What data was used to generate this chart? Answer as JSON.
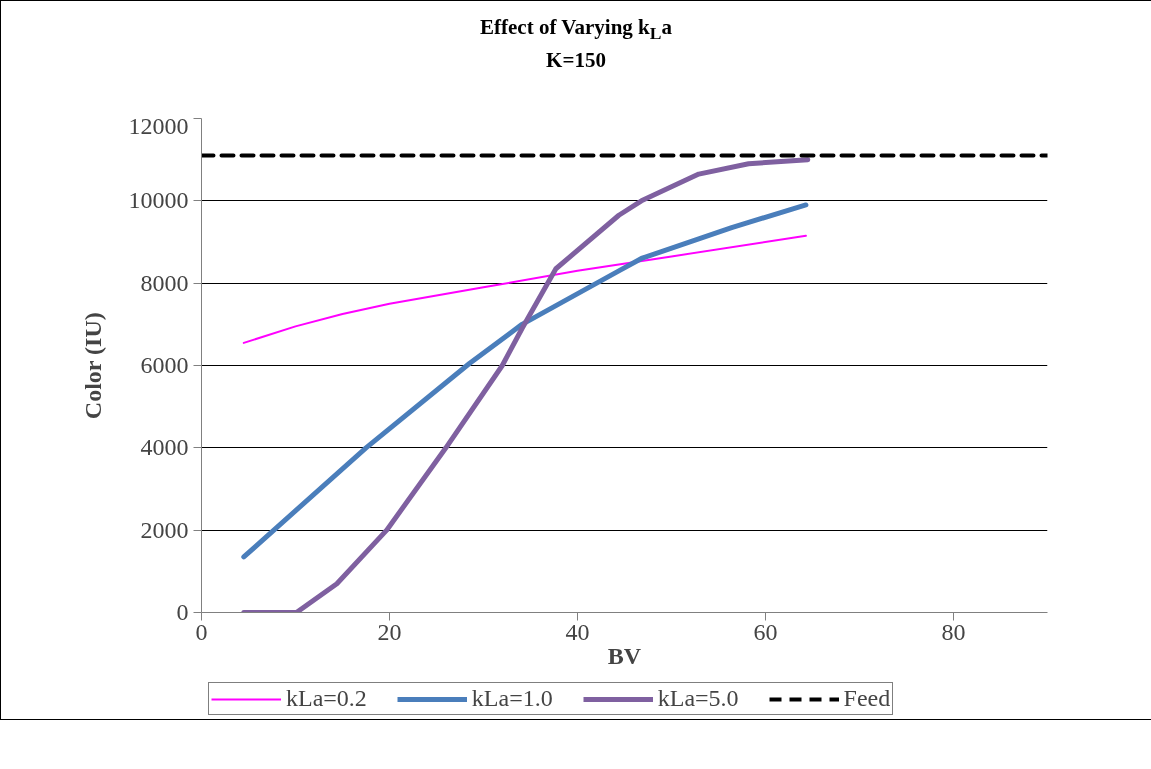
{
  "chart_data": {
    "type": "line",
    "title": "Effect of Varying k$_{L}$a",
    "subtitle": "K=150",
    "xlabel": "BV",
    "ylabel": "Color (IU)",
    "xlim": [
      0,
      90
    ],
    "xticks": [
      0,
      20,
      40,
      60,
      80
    ],
    "ylim": [
      0,
      12000
    ],
    "yticks": [
      0,
      2000,
      4000,
      6000,
      8000,
      10000,
      12000
    ],
    "grid": "y",
    "legend": "bottom",
    "marker": "none",
    "series": [
      {
        "name": "kLa=0.2",
        "color": "#ff00ff",
        "line_style": "solid",
        "x": [
          4.5,
          10,
          15,
          20,
          30,
          40,
          50,
          64.3
        ],
        "values": [
          6550,
          6950,
          7250,
          7500,
          7900,
          8300,
          8650,
          9150
        ]
      },
      {
        "name": "kLa=1.0",
        "color": "#4a7ebb",
        "line_style": "solid",
        "x": [
          4.5,
          17.5,
          28.5,
          34.1,
          44.4,
          46.8,
          56.4,
          64.3
        ],
        "values": [
          1350,
          4000,
          6050,
          7000,
          8300,
          8600,
          9350,
          9900
        ]
      },
      {
        "name": "kLa=5.0",
        "color": "#7f60a0",
        "line_style": "solid",
        "x": [
          4.5,
          10.1,
          14.4,
          19.7,
          26,
          32,
          34.1,
          37.7,
          44.4,
          46.8,
          52.9,
          58.2,
          64.5
        ],
        "values": [
          0,
          0,
          700,
          2000,
          4000,
          6000,
          6900,
          8350,
          9650,
          10000,
          10650,
          10900,
          11000
        ]
      },
      {
        "name": "Feed",
        "color": "#000000",
        "line_style": "dashed",
        "x": [
          0,
          90
        ],
        "values": [
          11100,
          11100
        ]
      }
    ]
  }
}
